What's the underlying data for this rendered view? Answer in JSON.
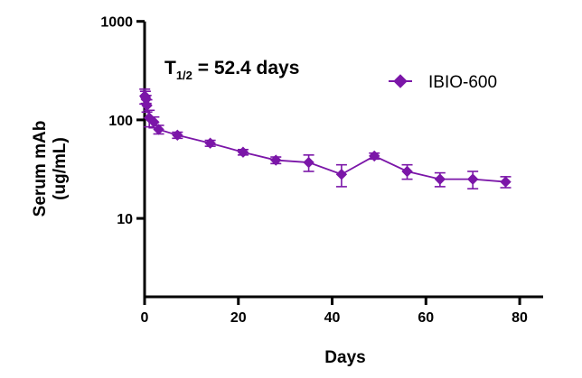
{
  "chart_data": {
    "type": "line",
    "title": "",
    "xlabel": "Days",
    "ylabel": "Serum mAb (ug/mL)",
    "ylabel_lines": [
      "Serum mAb",
      "(ug/mL)"
    ],
    "xlim": [
      0,
      85
    ],
    "ylim": [
      1.6,
      1000
    ],
    "yscale": "log",
    "x_ticks": [
      0,
      20,
      40,
      60,
      80
    ],
    "x_tick_labels": [
      "0",
      "20",
      "40",
      "60",
      "80"
    ],
    "y_ticks": [
      10,
      100,
      1000
    ],
    "y_tick_labels": [
      "10",
      "100",
      "1000"
    ],
    "annotation": {
      "prefix": "T",
      "subscript": "1/2",
      "suffix": " = 52.4 days"
    },
    "legend_position": "top-right",
    "series": [
      {
        "name": "IBIO-600",
        "color": "#7b16a8",
        "marker": "diamond",
        "x": [
          0.04,
          0.17,
          0.33,
          0.5,
          1,
          2,
          3,
          7,
          14,
          21,
          28,
          35,
          42,
          49,
          56,
          63,
          70,
          77
        ],
        "y": [
          175,
          170,
          162,
          140,
          105,
          95,
          80,
          70,
          58,
          47,
          39,
          37,
          28,
          43,
          30,
          25,
          25,
          23.5
        ],
        "y_err": [
          30,
          25,
          15,
          20,
          20,
          12,
          8,
          5,
          4,
          3,
          3,
          7,
          7,
          3,
          5,
          4,
          5,
          3
        ]
      }
    ]
  }
}
